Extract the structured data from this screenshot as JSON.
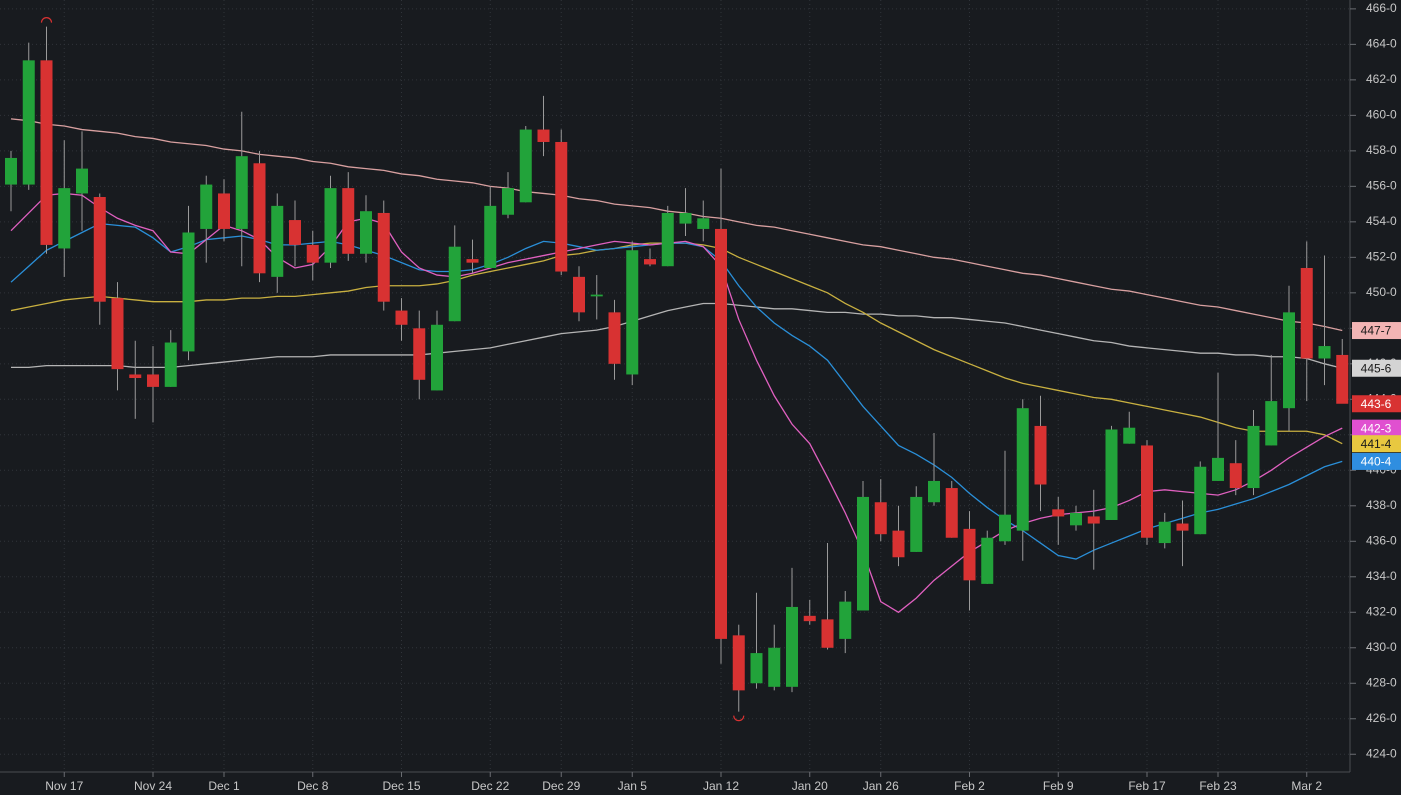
{
  "chart_data": {
    "type": "candlestick",
    "categories": [
      null,
      null,
      null,
      "Nov 17",
      null,
      null,
      null,
      null,
      "Nov 24",
      null,
      null,
      null,
      "Dec 1",
      null,
      null,
      null,
      null,
      "Dec 8",
      null,
      null,
      null,
      null,
      "Dec 15",
      null,
      null,
      null,
      null,
      "Dec 22",
      null,
      null,
      null,
      "Dec 29",
      null,
      null,
      null,
      "Jan 5",
      null,
      null,
      null,
      null,
      "Jan 12",
      null,
      null,
      null,
      null,
      "Jan 20",
      null,
      null,
      null,
      "Jan 26",
      null,
      null,
      null,
      null,
      "Feb 2",
      null,
      null,
      null,
      null,
      "Feb 9",
      null,
      null,
      null,
      null,
      "Feb 17",
      null,
      null,
      null,
      "Feb 23",
      null,
      null,
      null,
      null,
      "Mar 2",
      null,
      null
    ],
    "open": [
      456.1,
      456.1,
      463.1,
      452.5,
      455.6,
      455.4,
      449.7,
      445.4,
      445.4,
      444.7,
      446.7,
      453.6,
      455.6,
      453.6,
      457.3,
      450.9,
      454.1,
      452.7,
      451.7,
      455.9,
      452.2,
      454.5,
      449.0,
      448.0,
      444.5,
      448.4,
      451.9,
      451.4,
      454.4,
      455.1,
      459.2,
      458.5,
      450.9,
      449.8,
      448.9,
      445.4,
      451.9,
      451.5,
      453.9,
      453.6,
      453.6,
      430.7,
      428.0,
      427.8,
      427.8,
      431.8,
      431.6,
      430.5,
      432.1,
      438.2,
      436.6,
      435.4,
      438.2,
      439.0,
      436.7,
      433.6,
      436.0,
      436.6,
      442.5,
      437.8,
      436.9,
      437.4,
      437.2,
      441.5,
      441.4,
      435.9,
      437.0,
      436.4,
      439.4,
      440.4,
      439.0,
      441.4,
      443.5,
      451.4,
      446.3,
      446.5
    ],
    "high": [
      458.0,
      464.1,
      465.0,
      458.6,
      459.1,
      455.6,
      450.6,
      447.3,
      447.0,
      447.9,
      454.9,
      456.6,
      456.4,
      460.2,
      458.0,
      455.6,
      455.2,
      453.5,
      456.6,
      456.8,
      455.5,
      455.2,
      449.7,
      449.0,
      449.0,
      453.8,
      453.0,
      456.0,
      456.8,
      459.4,
      461.1,
      459.2,
      451.5,
      451.0,
      449.6,
      452.9,
      452.5,
      454.9,
      455.9,
      455.2,
      457.0,
      431.3,
      433.1,
      431.3,
      434.5,
      432.7,
      435.9,
      433.2,
      439.4,
      439.5,
      438.0,
      439.1,
      442.1,
      439.4,
      437.7,
      436.6,
      441.1,
      444.0,
      444.2,
      438.5,
      438.0,
      438.9,
      442.5,
      443.3,
      441.7,
      437.6,
      438.3,
      440.5,
      445.5,
      441.7,
      443.4,
      446.5,
      450.4,
      452.9,
      452.1,
      447.4
    ],
    "low": [
      454.6,
      455.8,
      452.2,
      450.9,
      453.5,
      448.2,
      444.5,
      442.9,
      442.7,
      444.7,
      446.2,
      451.7,
      452.9,
      451.5,
      450.6,
      450.0,
      451.5,
      450.7,
      451.4,
      451.8,
      451.7,
      449.0,
      447.3,
      444.0,
      444.5,
      448.4,
      451.1,
      451.4,
      454.2,
      455.1,
      457.7,
      451.0,
      448.4,
      448.5,
      445.1,
      444.8,
      451.5,
      451.5,
      453.2,
      452.9,
      429.1,
      426.4,
      427.7,
      427.6,
      427.5,
      431.3,
      429.9,
      429.7,
      432.1,
      436.0,
      434.6,
      435.4,
      438.0,
      436.2,
      432.1,
      433.6,
      435.8,
      434.9,
      437.7,
      435.8,
      436.6,
      434.4,
      437.2,
      441.5,
      435.8,
      435.6,
      434.6,
      436.4,
      439.4,
      438.6,
      438.6,
      441.4,
      442.2,
      443.9,
      444.8,
      443.9
    ],
    "close": [
      457.6,
      463.1,
      452.7,
      455.9,
      457.0,
      449.5,
      445.7,
      445.2,
      444.7,
      447.2,
      453.4,
      456.1,
      453.6,
      457.7,
      451.1,
      454.9,
      452.7,
      451.7,
      455.9,
      452.2,
      454.6,
      449.5,
      448.2,
      445.1,
      448.2,
      452.6,
      451.7,
      454.9,
      455.9,
      459.2,
      458.5,
      451.2,
      448.9,
      449.9,
      446.0,
      452.4,
      451.6,
      454.5,
      454.5,
      454.2,
      430.5,
      427.6,
      429.7,
      430.0,
      432.3,
      431.5,
      430.0,
      432.6,
      438.5,
      436.4,
      435.1,
      438.5,
      439.4,
      436.2,
      433.8,
      436.2,
      437.5,
      443.5,
      439.2,
      437.4,
      437.6,
      437.0,
      442.3,
      442.4,
      436.2,
      437.1,
      436.6,
      440.2,
      440.7,
      439.0,
      442.5,
      443.9,
      448.9,
      446.3,
      447.0,
      443.75
    ],
    "up_color": "#22a33a",
    "down_color": "#d83232",
    "wick_color": "#9a9a9a",
    "overlays": [
      {
        "color": "#d8a0a0",
        "values": [
          459.8,
          459.7,
          459.5,
          459.4,
          459.2,
          459.1,
          459.0,
          458.8,
          458.7,
          458.5,
          458.4,
          458.3,
          458.1,
          458.0,
          457.8,
          457.7,
          457.6,
          457.4,
          457.3,
          457.1,
          457.0,
          456.9,
          456.7,
          456.6,
          456.4,
          456.3,
          456.2,
          456.0,
          455.9,
          455.7,
          455.6,
          455.5,
          455.3,
          455.2,
          455.0,
          454.9,
          454.8,
          454.6,
          454.5,
          454.3,
          454.2,
          454.0,
          453.8,
          453.7,
          453.5,
          453.3,
          453.1,
          452.9,
          452.7,
          452.6,
          452.4,
          452.2,
          452.0,
          451.9,
          451.7,
          451.5,
          451.3,
          451.1,
          451.0,
          450.8,
          450.6,
          450.4,
          450.2,
          450.1,
          449.9,
          449.7,
          449.5,
          449.3,
          449.2,
          449.0,
          448.8,
          448.6,
          448.4,
          448.3,
          448.1,
          447.875
        ]
      },
      {
        "color": "#b4b4b4",
        "values": [
          445.8,
          445.8,
          445.9,
          445.9,
          445.9,
          445.9,
          445.9,
          445.8,
          445.8,
          445.8,
          445.9,
          446.0,
          446.1,
          446.2,
          446.3,
          446.4,
          446.4,
          446.4,
          446.5,
          446.5,
          446.5,
          446.5,
          446.5,
          446.5,
          446.6,
          446.7,
          446.8,
          446.9,
          447.1,
          447.3,
          447.5,
          447.7,
          447.8,
          447.9,
          448.1,
          448.4,
          448.7,
          449.0,
          449.2,
          449.4,
          449.4,
          449.3,
          449.2,
          449.1,
          449.1,
          449.0,
          448.9,
          448.9,
          448.8,
          448.8,
          448.7,
          448.7,
          448.6,
          448.6,
          448.5,
          448.4,
          448.3,
          448.1,
          447.9,
          447.7,
          447.5,
          447.3,
          447.2,
          447.0,
          446.9,
          446.8,
          446.7,
          446.6,
          446.6,
          446.5,
          446.5,
          446.4,
          446.4,
          446.3,
          446.0,
          445.75
        ]
      },
      {
        "color": "#c8b040",
        "values": [
          449.0,
          449.2,
          449.4,
          449.6,
          449.7,
          449.8,
          449.7,
          449.6,
          449.5,
          449.5,
          449.5,
          449.6,
          449.6,
          449.7,
          449.7,
          449.8,
          449.8,
          449.9,
          450.0,
          450.1,
          450.3,
          450.4,
          450.4,
          450.4,
          450.5,
          450.7,
          451.0,
          451.2,
          451.4,
          451.6,
          451.8,
          452.1,
          452.2,
          452.4,
          452.5,
          452.7,
          452.8,
          452.8,
          452.8,
          452.7,
          452.5,
          452.0,
          451.6,
          451.2,
          450.8,
          450.4,
          450.0,
          449.4,
          448.9,
          448.3,
          447.8,
          447.3,
          446.8,
          446.4,
          446.0,
          445.6,
          445.2,
          444.9,
          444.7,
          444.5,
          444.3,
          444.1,
          444.0,
          443.8,
          443.6,
          443.4,
          443.2,
          443.0,
          442.7,
          442.4,
          442.2,
          442.2,
          442.2,
          442.2,
          442.0,
          441.5
        ]
      },
      {
        "color": "#2a8fd8",
        "values": [
          450.6,
          451.5,
          452.4,
          452.9,
          453.4,
          453.9,
          453.8,
          453.7,
          453.1,
          452.3,
          452.6,
          453.0,
          453.1,
          453.2,
          453.0,
          452.7,
          452.7,
          452.8,
          452.9,
          452.7,
          452.4,
          452.1,
          451.7,
          451.3,
          451.2,
          451.2,
          451.3,
          451.6,
          452.0,
          452.5,
          452.9,
          452.8,
          452.6,
          452.4,
          452.5,
          452.6,
          452.7,
          452.8,
          452.8,
          452.6,
          451.8,
          450.4,
          449.2,
          448.3,
          447.6,
          447.0,
          446.2,
          444.9,
          443.6,
          442.5,
          441.4,
          440.9,
          440.3,
          439.6,
          438.7,
          437.9,
          437.2,
          436.6,
          435.9,
          435.2,
          435.0,
          435.5,
          435.9,
          436.3,
          436.7,
          437.0,
          437.3,
          437.6,
          437.8,
          438.1,
          438.4,
          438.8,
          439.2,
          439.7,
          440.2,
          440.5
        ]
      },
      {
        "color": "#e060c0",
        "values": [
          453.5,
          454.5,
          455.5,
          455.6,
          455.5,
          454.8,
          454.2,
          453.8,
          453.5,
          452.3,
          452.2,
          453.0,
          453.8,
          453.5,
          453.0,
          452.0,
          451.4,
          451.6,
          452.6,
          454.0,
          454.2,
          453.9,
          452.3,
          451.4,
          451.0,
          450.9,
          451.1,
          451.4,
          451.7,
          451.9,
          452.1,
          452.3,
          452.5,
          452.7,
          452.9,
          452.8,
          452.7,
          452.8,
          452.9,
          452.6,
          451.5,
          448.5,
          446.2,
          444.2,
          442.6,
          441.5,
          439.6,
          437.6,
          435.4,
          432.6,
          432.0,
          432.8,
          433.8,
          434.6,
          435.4,
          436.0,
          436.6,
          437.0,
          437.3,
          437.5,
          437.6,
          437.7,
          437.9,
          438.3,
          438.8,
          438.9,
          438.8,
          438.7,
          438.6,
          438.9,
          439.4,
          440.0,
          440.7,
          441.3,
          441.9,
          442.375
        ]
      }
    ],
    "price_tags": [
      {
        "value": 447.875,
        "label": "447-7",
        "color": "#f2b4b4",
        "text_color": "#1a1a1a"
      },
      {
        "value": 445.75,
        "label": "445-6",
        "color": "#d4d4d4",
        "text_color": "#1a1a1a"
      },
      {
        "value": 443.75,
        "label": "443-6",
        "color": "#d83232",
        "text_color": "#ffffff"
      },
      {
        "value": 442.375,
        "label": "442-3",
        "color": "#e050d0",
        "text_color": "#ffffff"
      },
      {
        "value": 441.5,
        "label": "441-4",
        "color": "#e8c840",
        "text_color": "#1a1a1a"
      },
      {
        "value": 440.5,
        "label": "440-4",
        "color": "#2f8ee0",
        "text_color": "#ffffff"
      }
    ],
    "ylim": [
      423,
      466.5
    ],
    "yticks": [
      {
        "value": 424,
        "label": "424-0"
      },
      {
        "value": 426,
        "label": "426-0"
      },
      {
        "value": 428,
        "label": "428-0"
      },
      {
        "value": 430,
        "label": "430-0"
      },
      {
        "value": 432,
        "label": "432-0"
      },
      {
        "value": 434,
        "label": "434-0"
      },
      {
        "value": 436,
        "label": "436-0"
      },
      {
        "value": 438,
        "label": "438-0"
      },
      {
        "value": 440,
        "label": "440-0"
      },
      {
        "value": 442,
        "label": "442-0"
      },
      {
        "value": 444,
        "label": "444-0"
      },
      {
        "value": 446,
        "label": "446-0"
      },
      {
        "value": 448,
        "label": "448-0"
      },
      {
        "value": 450,
        "label": "450-0"
      },
      {
        "value": 452,
        "label": "452-0"
      },
      {
        "value": 454,
        "label": "454-0"
      },
      {
        "value": 456,
        "label": "456-0"
      },
      {
        "value": 458,
        "label": "458-0"
      },
      {
        "value": 460,
        "label": "460-0"
      },
      {
        "value": 462,
        "label": "462-0"
      },
      {
        "value": 464,
        "label": "464-0"
      },
      {
        "value": 466,
        "label": "466-0"
      }
    ],
    "grid": true
  }
}
